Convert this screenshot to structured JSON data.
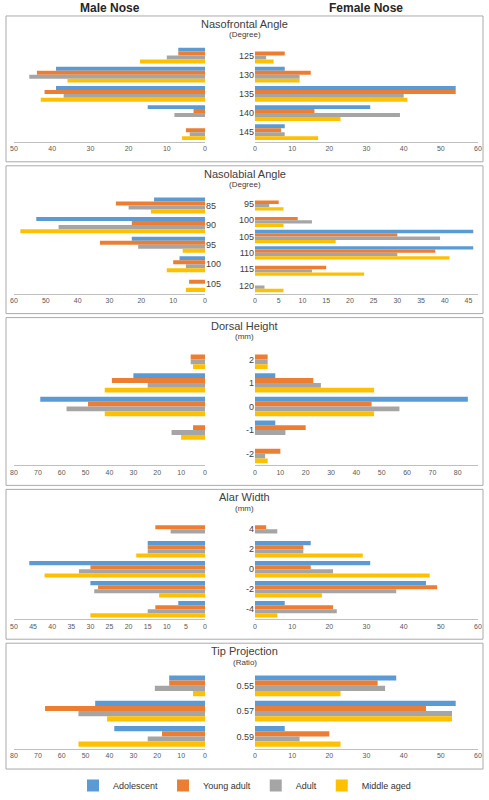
{
  "column_titles": [
    "Male Nose",
    "Female Nose"
  ],
  "chart_data": [
    {
      "type": "bar",
      "orientation": "horizontal",
      "legend": "bottom",
      "grid": false,
      "title": "Nasofrontal Angle",
      "subtitle": "(Degree)",
      "panels": [
        {
          "categories": [
            "125",
            "130",
            "135",
            "140",
            "145"
          ],
          "xlim": [
            50,
            0
          ],
          "xticks": [
            0,
            10,
            20,
            30,
            40,
            50
          ],
          "series": [
            {
              "name": "Adolescent",
              "color": "#5B9BD5",
              "values": [
                7,
                39,
                39,
                15,
                0
              ]
            },
            {
              "name": "Young adult",
              "color": "#ED7D31",
              "values": [
                7,
                44,
                42,
                3,
                5
              ]
            },
            {
              "name": "Adult",
              "color": "#A5A5A5",
              "values": [
                10,
                46,
                37,
                8,
                4
              ]
            },
            {
              "name": "Middle aged",
              "color": "#FFC000",
              "values": [
                17,
                36,
                43,
                0,
                6
              ]
            }
          ]
        },
        {
          "categories": [
            "125",
            "130",
            "135",
            "140",
            "145"
          ],
          "xlim": [
            0,
            60
          ],
          "xticks": [
            0,
            10,
            20,
            30,
            40,
            50,
            60
          ],
          "series": [
            {
              "name": "Adolescent",
              "color": "#5B9BD5",
              "values": [
                0,
                8,
                54,
                31,
                8
              ]
            },
            {
              "name": "Young adult",
              "color": "#ED7D31",
              "values": [
                8,
                15,
                54,
                16,
                7
              ]
            },
            {
              "name": "Adult",
              "color": "#A5A5A5",
              "values": [
                3,
                12,
                40,
                39,
                8
              ]
            },
            {
              "name": "Middle aged",
              "color": "#FFC000",
              "values": [
                5,
                12,
                41,
                23,
                17
              ]
            }
          ]
        }
      ]
    },
    {
      "type": "bar",
      "orientation": "horizontal",
      "legend": "bottom",
      "grid": false,
      "title": "Nasolabial Angle",
      "subtitle": "(Degree)",
      "panels": [
        {
          "categories": [
            "85",
            "90",
            "95",
            "100",
            "105"
          ],
          "xlim": [
            60,
            0
          ],
          "xticks": [
            0,
            10,
            20,
            30,
            40,
            50,
            60
          ],
          "series": [
            {
              "name": "Adolescent",
              "color": "#5B9BD5",
              "values": [
                16,
                53,
                23,
                8,
                0
              ]
            },
            {
              "name": "Young adult",
              "color": "#ED7D31",
              "values": [
                28,
                23,
                33,
                10,
                5
              ]
            },
            {
              "name": "Adult",
              "color": "#A5A5A5",
              "values": [
                24,
                46,
                21,
                6,
                0
              ]
            },
            {
              "name": "Middle aged",
              "color": "#FFC000",
              "values": [
                17,
                58,
                7,
                12,
                6
              ]
            }
          ]
        },
        {
          "categories": [
            "95",
            "100",
            "105",
            "110",
            "115",
            "120"
          ],
          "xlim": [
            0,
            47
          ],
          "xticks": [
            0,
            5,
            10,
            15,
            20,
            25,
            30,
            35,
            40,
            45
          ],
          "series": [
            {
              "name": "Adolescent",
              "color": "#5B9BD5",
              "values": [
                0,
                0,
                46,
                46,
                0,
                0
              ]
            },
            {
              "name": "Young adult",
              "color": "#ED7D31",
              "values": [
                5,
                9,
                30,
                38,
                15,
                0
              ]
            },
            {
              "name": "Adult",
              "color": "#A5A5A5",
              "values": [
                3,
                12,
                39,
                30,
                12,
                2
              ]
            },
            {
              "name": "Middle aged",
              "color": "#FFC000",
              "values": [
                6,
                6,
                17,
                41,
                23,
                6
              ]
            }
          ]
        }
      ]
    },
    {
      "type": "bar",
      "orientation": "horizontal",
      "legend": "bottom",
      "grid": false,
      "title": "Dorsal Height",
      "subtitle": "(mm)",
      "panels": [
        {
          "categories": [
            "2",
            "1",
            "0",
            "-1",
            "-2"
          ],
          "xlim": [
            80,
            0
          ],
          "xticks": [
            0,
            10,
            20,
            30,
            40,
            50,
            60,
            70,
            80
          ],
          "series": [
            {
              "name": "Adolescent",
              "color": "#5B9BD5",
              "values": [
                0,
                30,
                69,
                0,
                0
              ]
            },
            {
              "name": "Young adult",
              "color": "#ED7D31",
              "values": [
                6,
                39,
                49,
                5,
                0
              ]
            },
            {
              "name": "Adult",
              "color": "#A5A5A5",
              "values": [
                6,
                24,
                58,
                14,
                0
              ]
            },
            {
              "name": "Middle aged",
              "color": "#FFC000",
              "values": [
                5,
                42,
                42,
                10,
                0
              ]
            }
          ]
        },
        {
          "categories": [
            "2",
            "1",
            "0",
            "-1",
            "-2"
          ],
          "xlim": [
            0,
            88
          ],
          "xticks": [
            0,
            10,
            20,
            30,
            40,
            50,
            60,
            70,
            80
          ],
          "series": [
            {
              "name": "Adolescent",
              "color": "#5B9BD5",
              "values": [
                0,
                8,
                84,
                8,
                0
              ]
            },
            {
              "name": "Young adult",
              "color": "#ED7D31",
              "values": [
                5,
                23,
                46,
                20,
                10
              ]
            },
            {
              "name": "Adult",
              "color": "#A5A5A5",
              "values": [
                5,
                26,
                57,
                12,
                4
              ]
            },
            {
              "name": "Middle aged",
              "color": "#FFC000",
              "values": [
                5,
                47,
                47,
                0,
                5
              ]
            }
          ]
        }
      ]
    },
    {
      "type": "bar",
      "orientation": "horizontal",
      "legend": "bottom",
      "grid": false,
      "title": "Alar Width",
      "subtitle": "(mm)",
      "panels": [
        {
          "categories": [
            "4",
            "2",
            "0",
            "-2",
            "-4"
          ],
          "xlim": [
            50,
            0
          ],
          "xticks": [
            0,
            5,
            10,
            15,
            20,
            25,
            30,
            35,
            40,
            45,
            50
          ],
          "series": [
            {
              "name": "Adolescent",
              "color": "#5B9BD5",
              "values": [
                0,
                15,
                46,
                30,
                7
              ]
            },
            {
              "name": "Young adult",
              "color": "#ED7D31",
              "values": [
                13,
                15,
                30,
                28,
                13
              ]
            },
            {
              "name": "Adult",
              "color": "#A5A5A5",
              "values": [
                9,
                15,
                33,
                29,
                15
              ]
            },
            {
              "name": "Middle aged",
              "color": "#FFC000",
              "values": [
                0,
                18,
                42,
                12,
                30
              ]
            }
          ]
        },
        {
          "categories": [
            "4",
            "2",
            "0",
            "-2",
            "-4"
          ],
          "xlim": [
            0,
            60
          ],
          "xticks": [
            0,
            10,
            20,
            30,
            40,
            50,
            60
          ],
          "series": [
            {
              "name": "Adolescent",
              "color": "#5B9BD5",
              "values": [
                0,
                15,
                31,
                46,
                8
              ]
            },
            {
              "name": "Young adult",
              "color": "#ED7D31",
              "values": [
                3,
                13,
                15,
                49,
                21
              ]
            },
            {
              "name": "Adult",
              "color": "#A5A5A5",
              "values": [
                6,
                13,
                21,
                38,
                22
              ]
            },
            {
              "name": "Middle aged",
              "color": "#FFC000",
              "values": [
                0,
                29,
                47,
                18,
                6
              ]
            }
          ]
        }
      ]
    },
    {
      "type": "bar",
      "orientation": "horizontal",
      "legend": "bottom",
      "grid": false,
      "title": "Tip Projection",
      "subtitle": "(Ratio)",
      "panels": [
        {
          "categories": [
            "0.55",
            "0.57",
            "0.59"
          ],
          "xlim": [
            80,
            0
          ],
          "xticks": [
            0,
            10,
            20,
            30,
            40,
            50,
            60,
            70,
            80
          ],
          "series": [
            {
              "name": "Adolescent",
              "color": "#5B9BD5",
              "values": [
                15,
                46,
                38
              ]
            },
            {
              "name": "Young adult",
              "color": "#ED7D31",
              "values": [
                15,
                67,
                18
              ]
            },
            {
              "name": "Adult",
              "color": "#A5A5A5",
              "values": [
                21,
                53,
                24
              ]
            },
            {
              "name": "Middle aged",
              "color": "#FFC000",
              "values": [
                5,
                41,
                53
              ]
            }
          ]
        },
        {
          "categories": [
            "0.55",
            "0.57",
            "0.59"
          ],
          "xlim": [
            0,
            60
          ],
          "xticks": [
            0,
            10,
            20,
            30,
            40,
            50,
            60
          ],
          "series": [
            {
              "name": "Adolescent",
              "color": "#5B9BD5",
              "values": [
                38,
                54,
                8
              ]
            },
            {
              "name": "Young adult",
              "color": "#ED7D31",
              "values": [
                33,
                46,
                20
              ]
            },
            {
              "name": "Adult",
              "color": "#A5A5A5",
              "values": [
                35,
                53,
                12
              ]
            },
            {
              "name": "Middle aged",
              "color": "#FFC000",
              "values": [
                23,
                53,
                23
              ]
            }
          ]
        }
      ]
    }
  ]
}
